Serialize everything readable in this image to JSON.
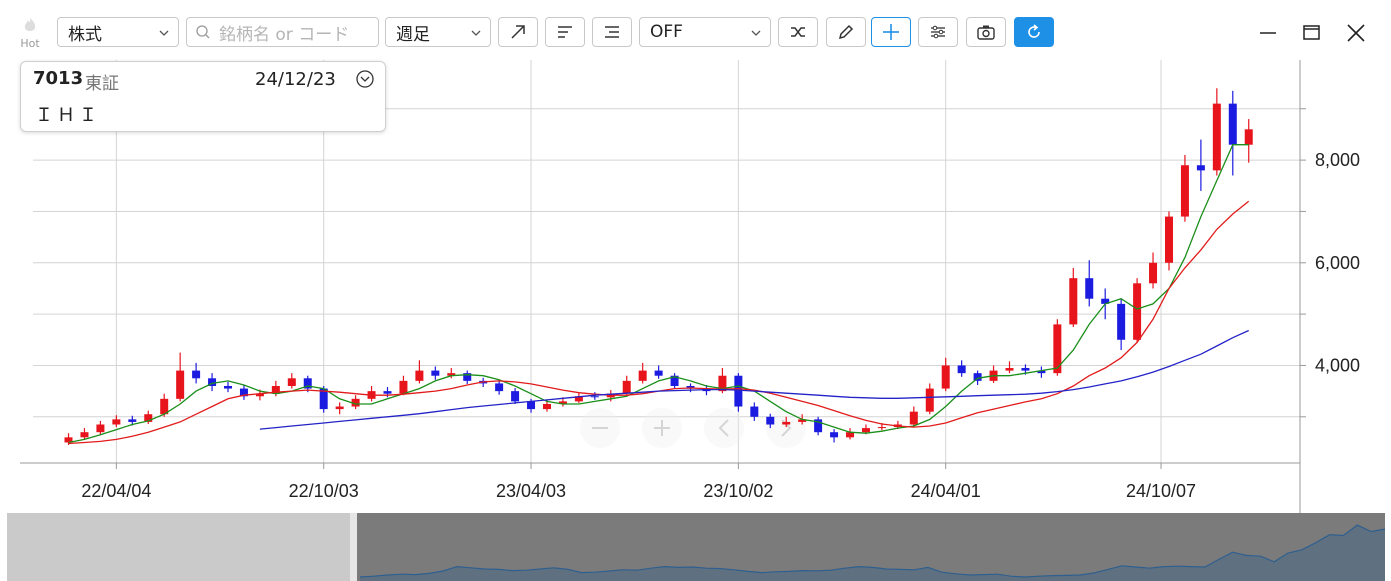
{
  "toolbar": {
    "hot": "Hot",
    "market": "株式",
    "search_placeholder": "銘柄名 or コード",
    "period": "週足",
    "indicator": "OFF"
  },
  "info": {
    "code": "7013",
    "exchange": "東証",
    "date": "24/12/23",
    "name": "ＩＨＩ"
  },
  "chart_data": {
    "type": "candlestick",
    "x": [
      "22/02/21",
      "22/03/07",
      "22/03/21",
      "22/04/04",
      "22/04/18",
      "22/05/02",
      "22/05/16",
      "22/05/30",
      "22/06/13",
      "22/06/27",
      "22/07/11",
      "22/07/25",
      "22/08/08",
      "22/08/22",
      "22/09/05",
      "22/09/19",
      "22/10/03",
      "22/10/17",
      "22/10/31",
      "22/11/14",
      "22/11/28",
      "22/12/12",
      "22/12/26",
      "23/01/09",
      "23/01/23",
      "23/02/06",
      "23/02/20",
      "23/03/06",
      "23/03/20",
      "23/04/03",
      "23/04/17",
      "23/05/01",
      "23/05/15",
      "23/05/29",
      "23/06/12",
      "23/06/26",
      "23/07/10",
      "23/07/24",
      "23/08/07",
      "23/08/21",
      "23/09/04",
      "23/09/18",
      "23/10/02",
      "23/10/16",
      "23/10/30",
      "23/11/13",
      "23/11/27",
      "23/12/11",
      "23/12/25",
      "24/01/08",
      "24/01/22",
      "24/02/05",
      "24/02/19",
      "24/03/04",
      "24/03/18",
      "24/04/01",
      "24/04/15",
      "24/04/29",
      "24/05/13",
      "24/05/27",
      "24/06/10",
      "24/06/24",
      "24/07/08",
      "24/07/22",
      "24/08/05",
      "24/08/19",
      "24/09/02",
      "24/09/16",
      "24/09/30",
      "24/10/14",
      "24/10/28",
      "24/11/11",
      "24/11/25",
      "24/12/09",
      "24/12/23"
    ],
    "open": [
      2500,
      2600,
      2700,
      2850,
      2950,
      2900,
      3050,
      3350,
      3900,
      3750,
      3600,
      3550,
      3400,
      3450,
      3600,
      3750,
      3550,
      3150,
      3200,
      3350,
      3500,
      3450,
      3700,
      3900,
      3800,
      3850,
      3700,
      3650,
      3500,
      3300,
      3150,
      3250,
      3300,
      3400,
      3380,
      3450,
      3700,
      3900,
      3800,
      3600,
      3550,
      3500,
      3800,
      3200,
      3000,
      2850,
      2900,
      2950,
      2700,
      2600,
      2700,
      2780,
      2800,
      2850,
      3100,
      3550,
      4000,
      3850,
      3700,
      3900,
      3950,
      3900,
      3850,
      4800,
      5700,
      5300,
      5200,
      4500,
      5600,
      6000,
      6900,
      7900,
      7800,
      9100,
      8300
    ],
    "high": [
      2680,
      2780,
      2920,
      3030,
      3020,
      3120,
      3450,
      4250,
      4050,
      3850,
      3680,
      3620,
      3530,
      3700,
      3850,
      3800,
      3600,
      3280,
      3420,
      3600,
      3580,
      3800,
      4100,
      3980,
      3950,
      3900,
      3760,
      3700,
      3560,
      3350,
      3320,
      3380,
      3460,
      3480,
      3520,
      3800,
      4050,
      4000,
      3850,
      3650,
      3620,
      3950,
      3850,
      3280,
      3060,
      3000,
      3050,
      3000,
      2760,
      2780,
      2850,
      2880,
      2920,
      3200,
      3650,
      4150,
      4100,
      3900,
      4000,
      4080,
      4020,
      3980,
      4900,
      5900,
      6050,
      5500,
      5300,
      5700,
      6200,
      7000,
      8100,
      8400,
      9400,
      9350,
      8800
    ],
    "low": [
      2450,
      2550,
      2650,
      2800,
      2830,
      2860,
      3000,
      3300,
      3650,
      3500,
      3480,
      3330,
      3320,
      3400,
      3550,
      3480,
      3080,
      3050,
      3150,
      3300,
      3380,
      3420,
      3650,
      3720,
      3750,
      3640,
      3580,
      3430,
      3250,
      3080,
      3100,
      3200,
      3270,
      3330,
      3300,
      3420,
      3650,
      3740,
      3550,
      3480,
      3420,
      3460,
      3100,
      2920,
      2780,
      2800,
      2850,
      2640,
      2500,
      2560,
      2660,
      2740,
      2760,
      2820,
      3050,
      3500,
      3780,
      3620,
      3660,
      3850,
      3820,
      3760,
      3800,
      4750,
      5150,
      4900,
      4300,
      4450,
      5500,
      5850,
      6800,
      7400,
      7700,
      7700,
      7950
    ],
    "close": [
      2600,
      2700,
      2850,
      2950,
      2900,
      3050,
      3350,
      3900,
      3750,
      3600,
      3550,
      3400,
      3450,
      3600,
      3750,
      3550,
      3150,
      3200,
      3350,
      3500,
      3450,
      3700,
      3900,
      3800,
      3850,
      3700,
      3650,
      3500,
      3300,
      3150,
      3250,
      3300,
      3400,
      3380,
      3450,
      3700,
      3900,
      3800,
      3600,
      3550,
      3500,
      3800,
      3200,
      3000,
      2850,
      2900,
      2950,
      2700,
      2600,
      2700,
      2780,
      2800,
      2850,
      3100,
      3550,
      4000,
      3850,
      3700,
      3900,
      3950,
      3900,
      3850,
      4800,
      5700,
      5300,
      5200,
      4500,
      5600,
      6000,
      6900,
      7900,
      7800,
      9100,
      8300,
      8600
    ],
    "up_color": "#e8141c",
    "down_color": "#1c1ce0",
    "moving_averages": [
      {
        "color": "#1a8f1a",
        "values": [
          2500,
          2560,
          2650,
          2750,
          2850,
          2920,
          3050,
          3250,
          3500,
          3650,
          3700,
          3620,
          3500,
          3450,
          3500,
          3600,
          3550,
          3350,
          3250,
          3250,
          3350,
          3450,
          3550,
          3700,
          3800,
          3820,
          3800,
          3720,
          3600,
          3450,
          3300,
          3250,
          3250,
          3300,
          3350,
          3400,
          3550,
          3700,
          3780,
          3700,
          3600,
          3550,
          3600,
          3500,
          3300,
          3100,
          2950,
          2900,
          2800,
          2700,
          2680,
          2720,
          2780,
          2820,
          2950,
          3200,
          3500,
          3750,
          3800,
          3800,
          3850,
          3900,
          3950,
          4300,
          4800,
          5200,
          5300,
          5100,
          5200,
          5500,
          6100,
          6900,
          7600,
          8300,
          8300
        ]
      },
      {
        "color": "#e21b1b",
        "values": [
          2480,
          2500,
          2520,
          2560,
          2620,
          2700,
          2800,
          2900,
          3050,
          3200,
          3350,
          3420,
          3450,
          3480,
          3500,
          3520,
          3500,
          3480,
          3450,
          3420,
          3420,
          3440,
          3470,
          3500,
          3550,
          3620,
          3680,
          3700,
          3680,
          3640,
          3580,
          3520,
          3470,
          3440,
          3420,
          3420,
          3450,
          3500,
          3550,
          3560,
          3550,
          3540,
          3550,
          3520,
          3460,
          3380,
          3300,
          3220,
          3120,
          3020,
          2930,
          2860,
          2820,
          2800,
          2820,
          2880,
          2980,
          3080,
          3150,
          3220,
          3290,
          3350,
          3450,
          3600,
          3800,
          3950,
          4150,
          4450,
          4900,
          5500,
          5900,
          6250,
          6650,
          6950,
          7200
        ]
      },
      {
        "color": "#2323c8",
        "values": [
          null,
          null,
          null,
          null,
          null,
          null,
          null,
          null,
          null,
          null,
          null,
          null,
          2760,
          2790,
          2820,
          2850,
          2880,
          2910,
          2940,
          2970,
          3000,
          3030,
          3060,
          3100,
          3140,
          3180,
          3210,
          3240,
          3270,
          3300,
          3330,
          3360,
          3390,
          3420,
          3440,
          3460,
          3480,
          3500,
          3510,
          3520,
          3530,
          3530,
          3520,
          3500,
          3480,
          3460,
          3440,
          3420,
          3400,
          3380,
          3370,
          3360,
          3360,
          3370,
          3380,
          3390,
          3400,
          3410,
          3420,
          3430,
          3440,
          3460,
          3490,
          3530,
          3580,
          3640,
          3700,
          3780,
          3870,
          3980,
          4100,
          4220,
          4380,
          4540,
          4680
        ]
      }
    ],
    "xlim": [
      "21/12/29",
      "25/02/06"
    ],
    "xticks": [
      "22/04/04",
      "22/10/03",
      "23/04/03",
      "23/10/02",
      "24/04/01",
      "24/10/07"
    ],
    "ylim": [
      2100,
      9950
    ],
    "yticks": [
      {
        "value": 4000,
        "label": "4,000"
      },
      {
        "value": 6000,
        "label": "6,000"
      },
      {
        "value": 8000,
        "label": "8,000"
      }
    ],
    "minor_yticks": [
      3000,
      5000,
      7000,
      9000
    ],
    "grid": true
  }
}
